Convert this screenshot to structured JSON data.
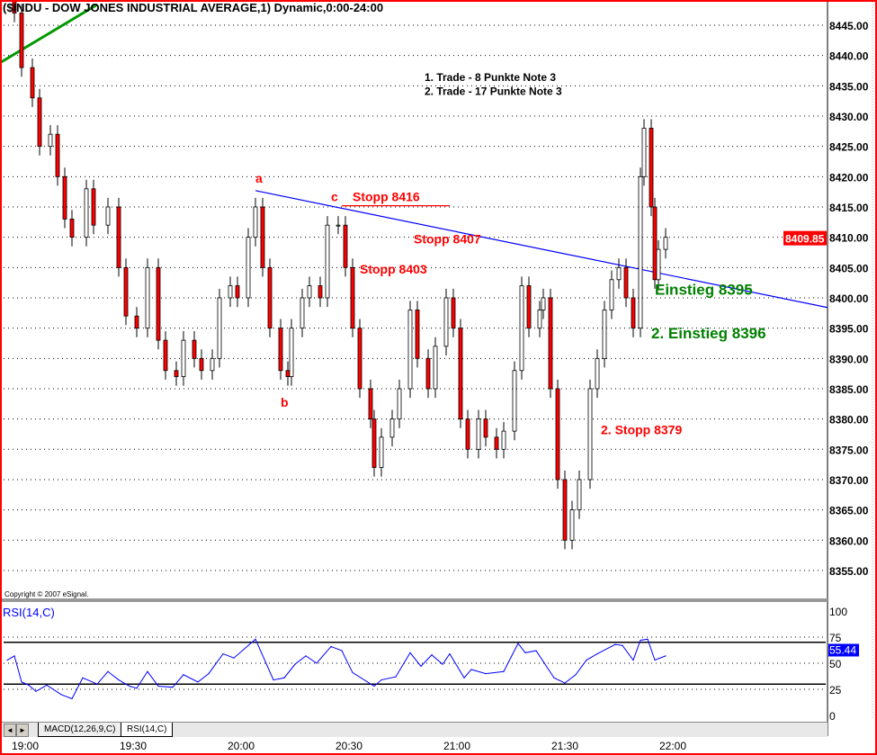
{
  "title": "($INDU - DOW JONES INDUSTRIAL AVERAGE,1) Dynamic,0:00-24:00",
  "copyright": "Copyright © 2007 eSignal.",
  "colors": {
    "border": "#ff0000",
    "down_candle": "#ff0000",
    "trend_green": "#009900",
    "trend_blue": "#0000ff",
    "annotation_red": "#ff0000",
    "annotation_green": "#008000",
    "rsi_line": "#0000ff"
  },
  "tabs": {
    "scroll_left_icon": "◄",
    "scroll_right_icon": "►",
    "items": [
      "MACD(12,26,9,C)",
      "RSI(14,C)"
    ],
    "active": "RSI(14,C)"
  },
  "chart_data": [
    {
      "type": "candlestick",
      "title": "($INDU - DOW JONES INDUSTRIAL AVERAGE,1) Dynamic,0:00-24:00",
      "ylim": [
        8350,
        8450
      ],
      "yticks": [
        "8445.00",
        "8440.00",
        "8435.00",
        "8430.00",
        "8425.00",
        "8420.00",
        "8415.00",
        "8410.00",
        "8405.00",
        "8400.00",
        "8395.00",
        "8390.00",
        "8385.00",
        "8380.00",
        "8375.00",
        "8370.00",
        "8365.00",
        "8360.00",
        "8355.00"
      ],
      "xticks": [
        "19:00",
        "19:30",
        "20:00",
        "20:30",
        "21:00",
        "21:30",
        "22:00"
      ],
      "last_price": "8409.85",
      "grid": true,
      "closes": [
        [
          "18:57",
          8447
        ],
        [
          "18:59",
          8438
        ],
        [
          "19:02",
          8433
        ],
        [
          "19:04",
          8425
        ],
        [
          "19:07",
          8427
        ],
        [
          "19:09",
          8420
        ],
        [
          "19:11",
          8413
        ],
        [
          "19:13",
          8410
        ],
        [
          "19:17",
          8418
        ],
        [
          "19:19",
          8412
        ],
        [
          "19:23",
          8415
        ],
        [
          "19:26",
          8405
        ],
        [
          "19:28",
          8397
        ],
        [
          "19:31",
          8395
        ],
        [
          "19:34",
          8405
        ],
        [
          "19:37",
          8393
        ],
        [
          "19:39",
          8388
        ],
        [
          "19:42",
          8387
        ],
        [
          "19:44",
          8393
        ],
        [
          "19:47",
          8390
        ],
        [
          "19:49",
          8388
        ],
        [
          "19:52",
          8390
        ],
        [
          "19:54",
          8400
        ],
        [
          "19:57",
          8402
        ],
        [
          "19:59",
          8400
        ],
        [
          "20:02",
          8410
        ],
        [
          "20:04",
          8415
        ],
        [
          "20:06",
          8405
        ],
        [
          "20:08",
          8395
        ],
        [
          "20:11",
          8388
        ],
        [
          "20:13",
          8387
        ],
        [
          "20:14",
          8395
        ],
        [
          "20:17",
          8400
        ],
        [
          "20:19",
          8402
        ],
        [
          "20:22",
          8400
        ],
        [
          "20:24",
          8412
        ],
        [
          "20:27",
          8412
        ],
        [
          "20:29",
          8405
        ],
        [
          "20:31",
          8395
        ],
        [
          "20:33",
          8385
        ],
        [
          "20:36",
          8380
        ],
        [
          "20:37",
          8372
        ],
        [
          "20:39",
          8377
        ],
        [
          "20:42",
          8380
        ],
        [
          "20:44",
          8385
        ],
        [
          "20:47",
          8398
        ],
        [
          "20:49",
          8390
        ],
        [
          "20:52",
          8385
        ],
        [
          "20:54",
          8392
        ],
        [
          "20:57",
          8400
        ],
        [
          "20:59",
          8395
        ],
        [
          "21:01",
          8380
        ],
        [
          "21:03",
          8375
        ],
        [
          "21:06",
          8380
        ],
        [
          "21:08",
          8377
        ],
        [
          "21:11",
          8375
        ],
        [
          "21:13",
          8378
        ],
        [
          "21:16",
          8388
        ],
        [
          "21:18",
          8402
        ],
        [
          "21:20",
          8395
        ],
        [
          "21:23",
          8398
        ],
        [
          "21:24",
          8400
        ],
        [
          "21:26",
          8385
        ],
        [
          "21:28",
          8370
        ],
        [
          "21:30",
          8360
        ],
        [
          "21:32",
          8365
        ],
        [
          "21:34",
          8370
        ],
        [
          "21:37",
          8385
        ],
        [
          "21:39",
          8390
        ],
        [
          "21:41",
          8398
        ],
        [
          "21:43",
          8403
        ],
        [
          "21:45",
          8405
        ],
        [
          "21:47",
          8400
        ],
        [
          "21:49",
          8395
        ],
        [
          "21:51",
          8420
        ],
        [
          "21:52",
          8428
        ],
        [
          "21:54",
          8415
        ],
        [
          "21:55",
          8403
        ],
        [
          "21:56",
          8408
        ],
        [
          "21:58",
          8410
        ]
      ],
      "trendlines": [
        {
          "color": "#009900",
          "from": [
            "18:53",
            8438.8
          ],
          "to": [
            "19:20",
            8448.4
          ]
        },
        {
          "color": "#0000ff",
          "from": [
            "20:04",
            8417.7
          ],
          "to": [
            "22:43",
            8398.4
          ]
        },
        {
          "color": "#ff0000",
          "from": [
            "20:28",
            8415.2
          ],
          "to": [
            "20:58",
            8415.2
          ]
        }
      ],
      "annotations": [
        {
          "text": "a",
          "color": "#ff0000",
          "at": [
            "20:04",
            8419
          ]
        },
        {
          "text": "b",
          "color": "#ff0000",
          "at": [
            "20:11",
            8382
          ]
        },
        {
          "text": "c",
          "color": "#ff0000",
          "at": [
            "20:25",
            8416
          ]
        },
        {
          "text": "Stopp 8416",
          "color": "#ff0000",
          "at": [
            "20:31",
            8416
          ]
        },
        {
          "text": "Stopp 8407",
          "color": "#ff0000",
          "at": [
            "20:48",
            8409
          ]
        },
        {
          "text": "Stopp 8403",
          "color": "#ff0000",
          "at": [
            "20:33",
            8404
          ]
        },
        {
          "text": "Einstieg 8395",
          "color": "#008000",
          "at": [
            "21:55",
            8400.5
          ],
          "big": true
        },
        {
          "text": "2. Einstieg 8396",
          "color": "#008000",
          "at": [
            "21:54",
            8393.3
          ],
          "big": true
        },
        {
          "text": "2. Stopp 8379",
          "color": "#ff0000",
          "at": [
            "21:40",
            8377.5
          ]
        },
        {
          "text": "1. Trade   - 8 Punkte Note 3",
          "color": "#000000",
          "at": [
            "20:51",
            8435.8
          ],
          "small": true
        },
        {
          "text": "2. Trade - 17 Punkte Note 3",
          "color": "#000000",
          "at": [
            "20:51",
            8433.5
          ],
          "small": true
        }
      ]
    },
    {
      "type": "line",
      "title": "RSI(14,C)",
      "ylim": [
        0,
        100
      ],
      "yticks": [
        "100",
        "75",
        "50",
        "25",
        "0"
      ],
      "levels": [
        70,
        30
      ],
      "last_value": "55.44",
      "points": [
        [
          "18:55",
          53
        ],
        [
          "18:57",
          57
        ],
        [
          "18:59",
          32
        ],
        [
          "19:01",
          29
        ],
        [
          "19:03",
          23
        ],
        [
          "19:06",
          29
        ],
        [
          "19:10",
          20
        ],
        [
          "19:13",
          16
        ],
        [
          "19:16",
          36
        ],
        [
          "19:20",
          30
        ],
        [
          "19:23",
          42
        ],
        [
          "19:26",
          34
        ],
        [
          "19:29",
          28
        ],
        [
          "19:31",
          26
        ],
        [
          "19:34",
          42
        ],
        [
          "19:37",
          28
        ],
        [
          "19:41",
          27
        ],
        [
          "19:44",
          39
        ],
        [
          "19:48",
          32
        ],
        [
          "19:51",
          40
        ],
        [
          "19:55",
          59
        ],
        [
          "19:58",
          55
        ],
        [
          "20:04",
          73
        ],
        [
          "20:09",
          34
        ],
        [
          "20:12",
          36
        ],
        [
          "20:15",
          49
        ],
        [
          "20:18",
          57
        ],
        [
          "20:21",
          50
        ],
        [
          "20:25",
          66
        ],
        [
          "20:28",
          62
        ],
        [
          "20:31",
          41
        ],
        [
          "20:37",
          28
        ],
        [
          "20:39",
          34
        ],
        [
          "20:43",
          37
        ],
        [
          "20:47",
          60
        ],
        [
          "20:50",
          47
        ],
        [
          "20:53",
          58
        ],
        [
          "20:56",
          49
        ],
        [
          "20:58",
          59
        ],
        [
          "21:02",
          36
        ],
        [
          "21:04",
          44
        ],
        [
          "21:08",
          40
        ],
        [
          "21:13",
          42
        ],
        [
          "21:17",
          69
        ],
        [
          "21:19",
          60
        ],
        [
          "21:22",
          62
        ],
        [
          "21:27",
          36
        ],
        [
          "21:30",
          31
        ],
        [
          "21:33",
          39
        ],
        [
          "21:36",
          53
        ],
        [
          "21:39",
          59
        ],
        [
          "21:44",
          68
        ],
        [
          "21:46",
          67
        ],
        [
          "21:49",
          53
        ],
        [
          "21:51",
          72
        ],
        [
          "21:53",
          73
        ],
        [
          "21:55",
          53
        ],
        [
          "21:58",
          57
        ]
      ]
    }
  ]
}
